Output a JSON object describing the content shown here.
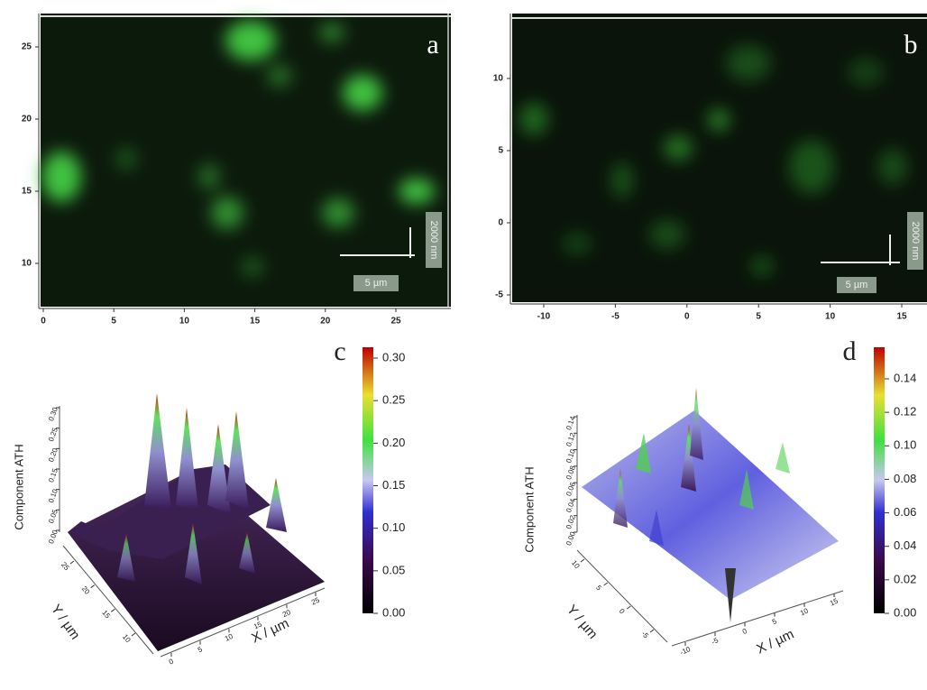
{
  "panels": [
    {
      "label": "a",
      "x_ticks": [
        "0",
        "5",
        "10",
        "15",
        "20",
        "25"
      ],
      "y_ticks": [
        "25",
        "20",
        "15",
        "10"
      ],
      "scale_bar_h": "5 µm",
      "scale_bar_v": "2000 nm"
    },
    {
      "label": "b",
      "x_ticks": [
        "-10",
        "-5",
        "0",
        "5",
        "10",
        "15"
      ],
      "y_ticks": [
        "10",
        "5",
        "0",
        "-5"
      ],
      "scale_bar_h": "5 µm",
      "scale_bar_v": "2000 nm"
    },
    {
      "label": "c",
      "colorbar_ticks": [
        "0.30",
        "0.25",
        "0.20",
        "0.15",
        "0.10",
        "0.05",
        "0.00"
      ],
      "z_axis_label": "Component ATH",
      "z_ticks": [
        "0.30",
        "0.25",
        "0.20",
        "0.15",
        "0.10",
        "0.05",
        "0.00"
      ],
      "y_axis_label": "Y / µm",
      "y_ticks": [
        "25",
        "20",
        "15",
        "10"
      ],
      "x_axis_label": "X / µm",
      "x_ticks": [
        "0",
        "5",
        "10",
        "15",
        "20",
        "25"
      ]
    },
    {
      "label": "d",
      "colorbar_ticks": [
        "0.14",
        "0.12",
        "0.10",
        "0.08",
        "0.06",
        "0.04",
        "0.02",
        "0.00"
      ],
      "z_axis_label": "Component ATH",
      "z_ticks": [
        "0.14",
        "0.12",
        "0.10",
        "0.08",
        "0.06",
        "0.04",
        "0.02",
        "0.00"
      ],
      "y_axis_label": "Y / µm",
      "y_ticks": [
        "10",
        "5",
        "0",
        "-5"
      ],
      "x_axis_label": "X / µm",
      "x_ticks": [
        "-10",
        "-5",
        "0",
        "5",
        "10",
        "15"
      ]
    }
  ]
}
